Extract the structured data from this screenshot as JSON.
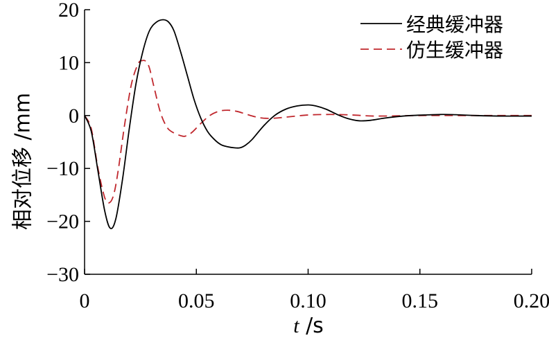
{
  "chart_data": {
    "type": "line",
    "xlabel_var": "t",
    "xlabel_unit": " /s",
    "ylabel": "相对位移 /mm",
    "xlim": [
      0,
      0.2
    ],
    "ylim": [
      -30,
      20
    ],
    "x_ticks": [
      0,
      0.05,
      0.1,
      0.15,
      0.2
    ],
    "x_tick_labels": [
      "0",
      "0.05",
      "0.10",
      "0.15",
      "0.20"
    ],
    "y_ticks": [
      -30,
      -20,
      -10,
      0,
      10,
      20
    ],
    "y_tick_labels": [
      "−30",
      "−20",
      "−10",
      "0",
      "10",
      "20"
    ],
    "grid": false,
    "legend_position": "top-right",
    "series": [
      {
        "name": "经典缓冲器",
        "color": "#000000",
        "dash": "solid",
        "x": [
          0,
          0.003,
          0.006,
          0.009,
          0.0115,
          0.014,
          0.017,
          0.02,
          0.023,
          0.026,
          0.029,
          0.032,
          0.035,
          0.0375,
          0.04,
          0.043,
          0.046,
          0.049,
          0.052,
          0.055,
          0.058,
          0.061,
          0.064,
          0.067,
          0.0695,
          0.072,
          0.075,
          0.08,
          0.085,
          0.09,
          0.095,
          0.1,
          0.1035,
          0.108,
          0.113,
          0.118,
          0.123,
          0.128,
          0.134,
          0.14,
          0.146,
          0.152,
          0.16,
          0.166,
          0.175,
          0.185,
          0.2
        ],
        "y": [
          0,
          -3,
          -10.5,
          -18,
          -21.3,
          -19.5,
          -12,
          -2.5,
          6,
          12,
          16,
          17.6,
          18.1,
          17.7,
          16,
          12,
          7.5,
          3,
          -0.5,
          -3,
          -4.5,
          -5.5,
          -5.9,
          -6.1,
          -6.1,
          -5.6,
          -4.5,
          -2,
          0,
          1.2,
          1.8,
          2,
          1.8,
          1.2,
          0.2,
          -0.6,
          -1,
          -0.9,
          -0.5,
          -0.2,
          0,
          0.1,
          0.2,
          0.15,
          0,
          -0.1,
          -0.1
        ]
      },
      {
        "name": "仿生缓冲器",
        "color": "#c0272d",
        "dash": "dashed",
        "x": [
          0,
          0.003,
          0.006,
          0.009,
          0.011,
          0.013,
          0.015,
          0.018,
          0.021,
          0.024,
          0.026,
          0.0275,
          0.029,
          0.031,
          0.034,
          0.037,
          0.04,
          0.043,
          0.045,
          0.048,
          0.052,
          0.056,
          0.06,
          0.064,
          0.068,
          0.072,
          0.076,
          0.08,
          0.085,
          0.09,
          0.1,
          0.11,
          0.12,
          0.13,
          0.15,
          0.17,
          0.2
        ],
        "y": [
          0,
          -2.5,
          -10,
          -15.5,
          -16.5,
          -15,
          -10.5,
          -1.5,
          6,
          9.8,
          10.4,
          10.2,
          9,
          5.5,
          0.5,
          -2.3,
          -3.3,
          -3.8,
          -3.9,
          -3.2,
          -1.5,
          0,
          0.8,
          1,
          0.8,
          0.3,
          -0.2,
          -0.5,
          -0.5,
          -0.3,
          0.1,
          0.2,
          0.1,
          -0.1,
          0,
          0,
          0
        ]
      }
    ]
  }
}
